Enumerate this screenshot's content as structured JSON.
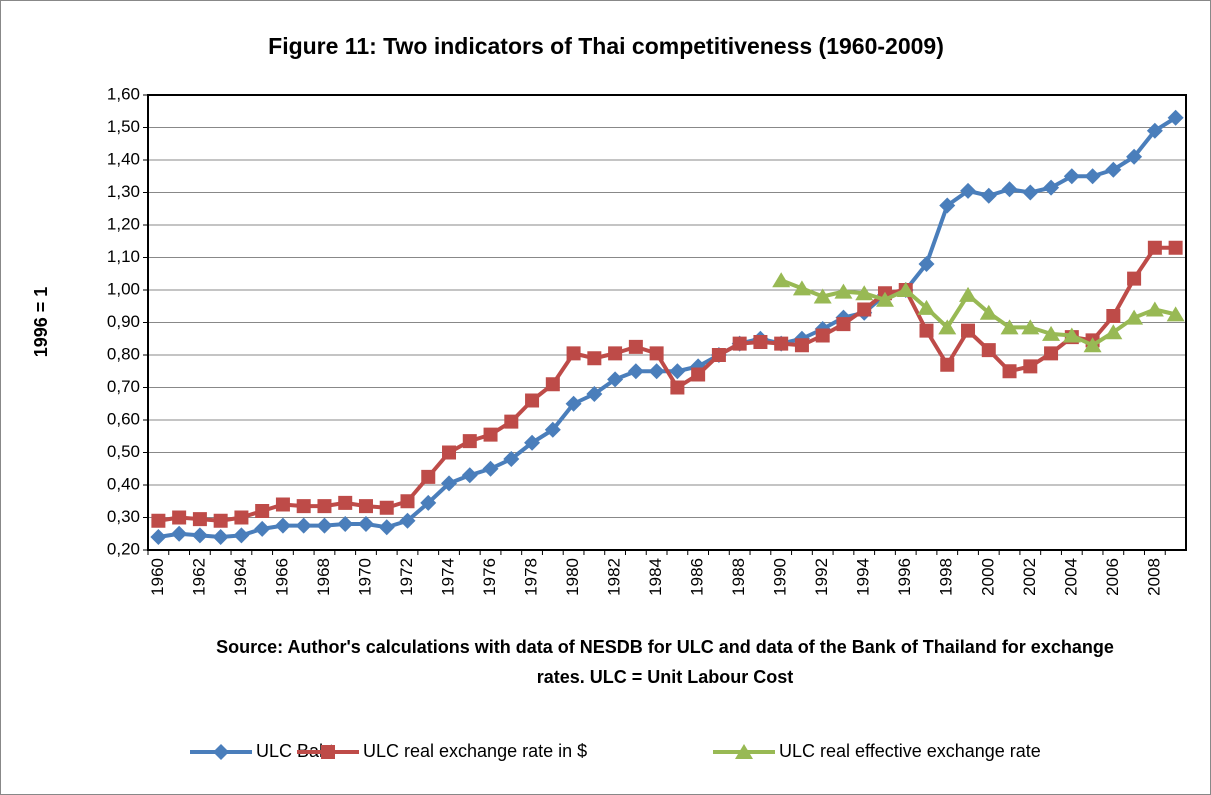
{
  "chart_data": {
    "type": "line",
    "title": "Figure 11: Two indicators of Thai competitiveness (1960-2009)",
    "ylabel": "1996 = 1",
    "source": "Source: Author's calculations with data of NESDB for ULC and data of the Bank of Thailand for exchange rates. ULC = Unit Labour Cost",
    "categories": [
      "1960",
      null,
      "1962",
      null,
      "1964",
      null,
      "1966",
      null,
      "1968",
      null,
      "1970",
      null,
      "1972",
      null,
      "1974",
      null,
      "1976",
      null,
      "1978",
      null,
      "1980",
      null,
      "1982",
      null,
      "1984",
      null,
      "1986",
      null,
      "1988",
      null,
      "1990",
      null,
      "1992",
      null,
      "1994",
      null,
      "1996",
      null,
      "1998",
      null,
      "2000",
      null,
      "2002",
      null,
      "2004",
      null,
      "2006",
      null,
      "2008",
      null
    ],
    "ylim": [
      0.2,
      1.6
    ],
    "yticks": [
      {
        "value": 0.2,
        "label": "0,20"
      },
      {
        "value": 0.3,
        "label": "0,30"
      },
      {
        "value": 0.4,
        "label": "0,40"
      },
      {
        "value": 0.5,
        "label": "0,50"
      },
      {
        "value": 0.6,
        "label": "0,60"
      },
      {
        "value": 0.7,
        "label": "0,70"
      },
      {
        "value": 0.8,
        "label": "0,80"
      },
      {
        "value": 0.9,
        "label": "0,90"
      },
      {
        "value": 1.0,
        "label": "1,00"
      },
      {
        "value": 1.1,
        "label": "1,10"
      },
      {
        "value": 1.2,
        "label": "1,20"
      },
      {
        "value": 1.3,
        "label": "1,30"
      },
      {
        "value": 1.4,
        "label": "1,40"
      },
      {
        "value": 1.5,
        "label": "1,50"
      },
      {
        "value": 1.6,
        "label": "1,60"
      }
    ],
    "grid": true,
    "legend": "bottom",
    "series": [
      {
        "name": "ULC Baht",
        "color": "#4a7ebb",
        "marker": "diamond",
        "values": [
          0.24,
          0.25,
          0.245,
          0.24,
          0.245,
          0.265,
          0.275,
          0.275,
          0.275,
          0.28,
          0.28,
          0.27,
          0.29,
          0.345,
          0.405,
          0.43,
          0.45,
          0.48,
          0.53,
          0.57,
          0.65,
          0.68,
          0.725,
          0.75,
          0.75,
          0.75,
          0.765,
          0.8,
          0.835,
          0.85,
          0.835,
          0.85,
          0.88,
          0.915,
          0.93,
          0.985,
          1.0,
          1.08,
          1.26,
          1.305,
          1.29,
          1.31,
          1.3,
          1.315,
          1.35,
          1.35,
          1.37,
          1.41,
          1.49,
          1.53
        ]
      },
      {
        "name": "ULC real exchange rate in $",
        "color": "#be4b48",
        "marker": "square",
        "values": [
          0.29,
          0.3,
          0.295,
          0.29,
          0.3,
          0.32,
          0.34,
          0.335,
          0.335,
          0.345,
          0.335,
          0.33,
          0.35,
          0.425,
          0.5,
          0.535,
          0.555,
          0.595,
          0.66,
          0.71,
          0.805,
          0.79,
          0.805,
          0.825,
          0.805,
          0.7,
          0.74,
          0.8,
          0.835,
          0.84,
          0.835,
          0.83,
          0.86,
          0.895,
          0.94,
          0.99,
          1.0,
          0.875,
          0.77,
          0.875,
          0.815,
          0.75,
          0.765,
          0.805,
          0.855,
          0.845,
          0.92,
          1.035,
          1.13,
          1.13
        ]
      },
      {
        "name": "ULC real effective exchange rate",
        "color": "#98b954",
        "marker": "triangle",
        "values": [
          null,
          null,
          null,
          null,
          null,
          null,
          null,
          null,
          null,
          null,
          null,
          null,
          null,
          null,
          null,
          null,
          null,
          null,
          null,
          null,
          null,
          null,
          null,
          null,
          null,
          null,
          null,
          null,
          null,
          null,
          1.03,
          1.005,
          0.98,
          0.995,
          0.99,
          0.97,
          1.0,
          0.945,
          0.885,
          0.985,
          0.93,
          0.885,
          0.885,
          0.865,
          0.86,
          0.83,
          0.87,
          0.915,
          0.94,
          0.925
        ]
      }
    ]
  }
}
